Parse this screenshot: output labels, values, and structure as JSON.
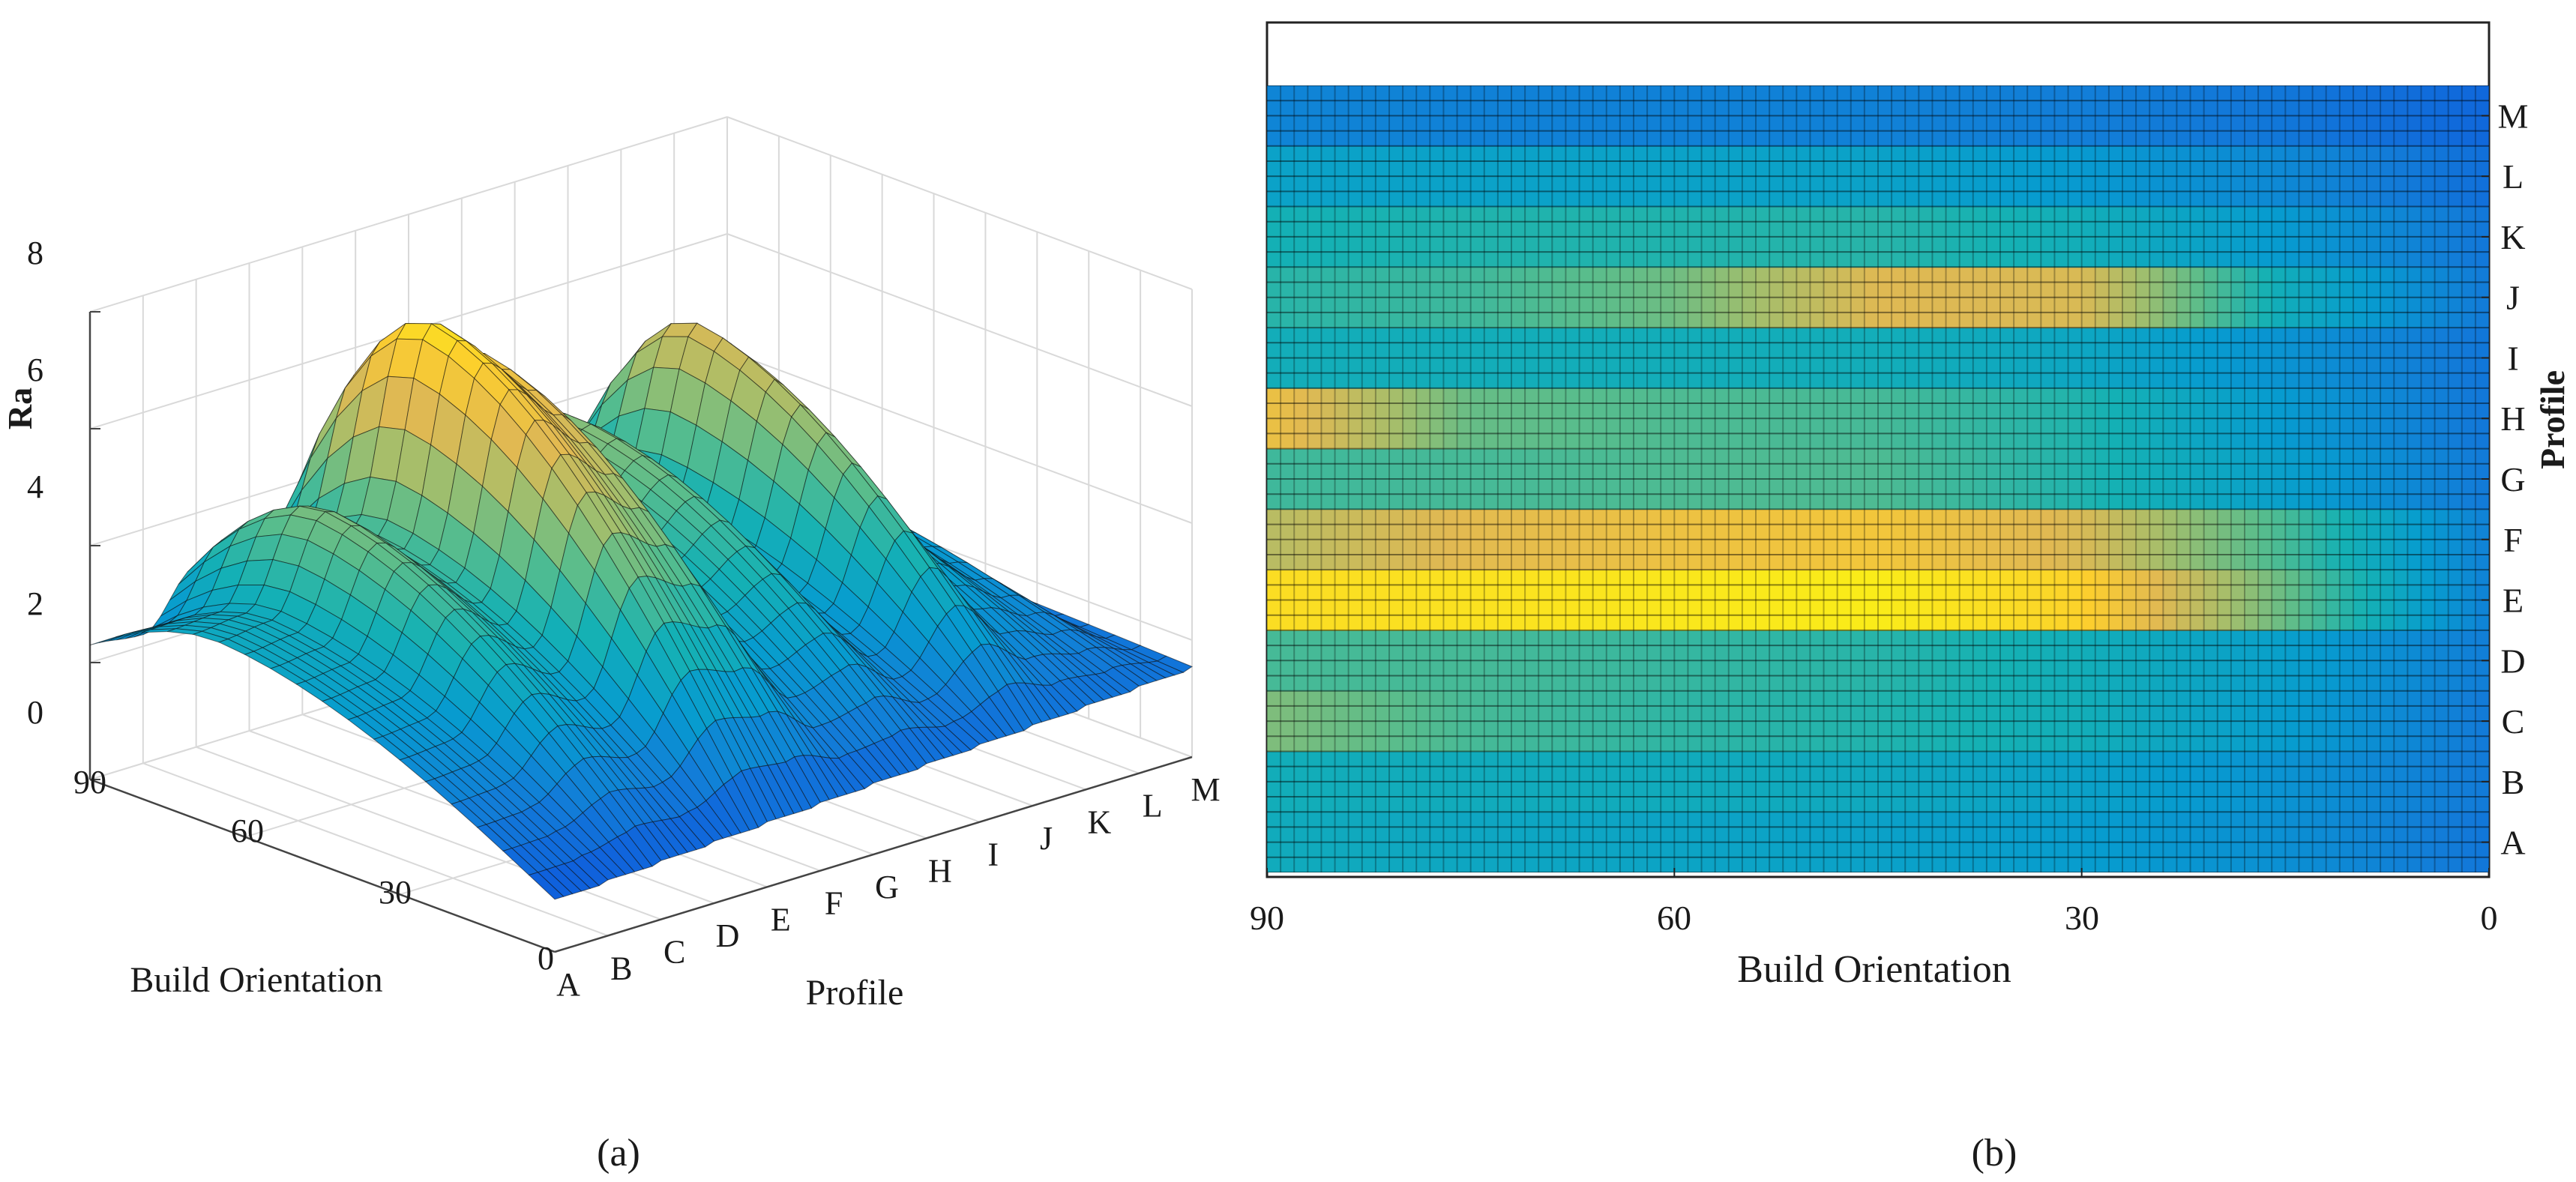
{
  "captions": {
    "a": "(a)",
    "b": "(b)"
  },
  "chart_data": [
    {
      "type": "surface",
      "panel": "a",
      "zlabel": "Ra",
      "xlabel": "Build Orientation",
      "ylabel": "Profile",
      "z_ticks": [
        "0",
        "2",
        "4",
        "6",
        "8"
      ],
      "x_ticks": [
        "0",
        "30",
        "60",
        "90"
      ],
      "y_ticks": [
        "A",
        "B",
        "C",
        "D",
        "E",
        "F",
        "G",
        "H",
        "I",
        "J",
        "K",
        "L",
        "M"
      ],
      "zlim": [
        0,
        8
      ],
      "xlim": [
        0,
        90
      ],
      "grid": true,
      "colormap": "parula",
      "profiles": [
        "A",
        "B",
        "C",
        "D",
        "E",
        "F",
        "G",
        "H",
        "I",
        "J",
        "K",
        "L",
        "M"
      ],
      "profile_peak_ra": [
        3.2,
        3.3,
        4.9,
        4.2,
        7.6,
        6.8,
        4.3,
        5.0,
        3.4,
        6.2,
        3.8,
        2.9,
        1.7
      ],
      "profile_end_ra_at_90": [
        2.3,
        2.2,
        3.1,
        2.6,
        3.9,
        3.6,
        2.7,
        4.6,
        2.4,
        2.6,
        2.3,
        2.1,
        1.4
      ]
    },
    {
      "type": "heatmap",
      "panel": "b",
      "xlabel": "Build Orientation",
      "ylabel": "Profile",
      "x_ticks": [
        "90",
        "60",
        "30",
        "0"
      ],
      "xlim": [
        90,
        0
      ],
      "categories": [
        "A",
        "B",
        "C",
        "D",
        "E",
        "F",
        "G",
        "H",
        "I",
        "J",
        "K",
        "L",
        "M"
      ],
      "colormap": "parula",
      "value_range": [
        0,
        8
      ],
      "x_samples": [
        90,
        75,
        60,
        45,
        30,
        15,
        0
      ],
      "values": [
        [
          3.3,
          3.1,
          3.0,
          2.9,
          2.7,
          2.3,
          1.6
        ],
        [
          3.4,
          3.3,
          3.3,
          3.2,
          2.9,
          2.4,
          1.7
        ],
        [
          4.9,
          4.2,
          3.9,
          3.7,
          3.4,
          2.7,
          1.7
        ],
        [
          4.2,
          4.2,
          4.0,
          3.8,
          3.4,
          2.8,
          1.8
        ],
        [
          7.4,
          7.5,
          7.6,
          7.7,
          7.2,
          4.6,
          1.9
        ],
        [
          5.6,
          6.3,
          6.6,
          6.8,
          6.1,
          4.2,
          1.9
        ],
        [
          4.1,
          4.2,
          4.3,
          4.3,
          3.7,
          2.8,
          1.7
        ],
        [
          6.6,
          4.6,
          4.3,
          4.2,
          3.7,
          2.6,
          1.6
        ],
        [
          3.4,
          3.4,
          3.4,
          3.4,
          3.1,
          2.4,
          1.6
        ],
        [
          3.8,
          4.1,
          4.7,
          6.2,
          6.1,
          3.3,
          1.7
        ],
        [
          3.5,
          3.7,
          3.7,
          3.8,
          3.4,
          2.6,
          1.6
        ],
        [
          2.9,
          2.9,
          2.9,
          2.9,
          2.6,
          2.1,
          1.4
        ],
        [
          2.0,
          1.9,
          1.9,
          1.9,
          1.8,
          1.6,
          1.2
        ]
      ]
    }
  ]
}
